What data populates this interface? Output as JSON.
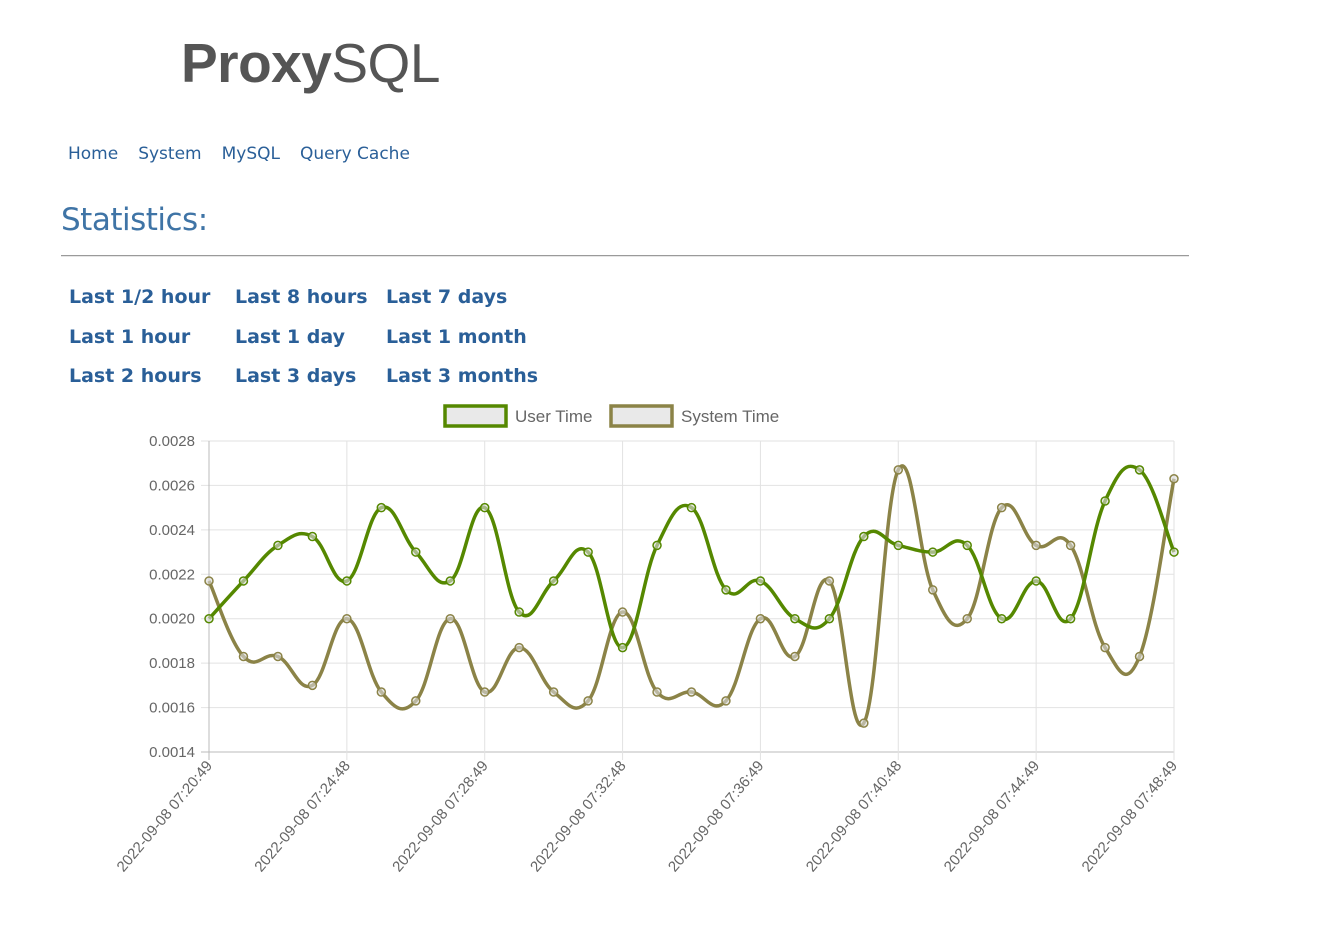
{
  "logo": {
    "bold": "Proxy",
    "light": "SQL"
  },
  "nav": {
    "items": [
      {
        "label": "Home"
      },
      {
        "label": "System"
      },
      {
        "label": "MySQL"
      },
      {
        "label": "Query Cache"
      }
    ]
  },
  "heading": "Statistics:",
  "ranges": {
    "columns": [
      [
        "Last 1/2 hour",
        "Last 1 hour",
        "Last 2 hours"
      ],
      [
        "Last 8 hours",
        "Last 1 day",
        "Last 3 days"
      ],
      [
        "Last 7 days",
        "Last 1 month",
        "Last 3 months"
      ]
    ]
  },
  "chart_data": {
    "type": "line",
    "y_ticks": [
      "0.0014",
      "0.0016",
      "0.0018",
      "0.0020",
      "0.0022",
      "0.0024",
      "0.0026",
      "0.0028"
    ],
    "ylim": [
      0.0014,
      0.0028
    ],
    "x_tick_labels": [
      "2022-09-08 07:20:49",
      "2022-09-08 07:24:48",
      "2022-09-08 07:28:49",
      "2022-09-08 07:32:48",
      "2022-09-08 07:36:49",
      "2022-09-08 07:40:48",
      "2022-09-08 07:44:49",
      "2022-09-08 07:48:49"
    ],
    "grid": true,
    "legend_position": "top",
    "series": [
      {
        "name": "User Time",
        "color": "#558800",
        "values": [
          0.002,
          0.00217,
          0.00233,
          0.00237,
          0.00217,
          0.0025,
          0.0023,
          0.00217,
          0.0025,
          0.00203,
          0.00217,
          0.0023,
          0.00187,
          0.00233,
          0.0025,
          0.00213,
          0.00217,
          0.002,
          0.002,
          0.00237,
          0.00233,
          0.0023,
          0.00233,
          0.002,
          0.00217,
          0.002,
          0.00253,
          0.00267,
          0.0023
        ]
      },
      {
        "name": "System Time",
        "color": "#8b8347",
        "values": [
          0.00217,
          0.00183,
          0.00183,
          0.0017,
          0.002,
          0.00167,
          0.00163,
          0.002,
          0.00167,
          0.00187,
          0.00167,
          0.00163,
          0.00203,
          0.00167,
          0.00167,
          0.00163,
          0.002,
          0.00183,
          0.00217,
          0.00153,
          0.00267,
          0.00213,
          0.002,
          0.0025,
          0.00233,
          0.00233,
          0.00187,
          0.00183,
          0.00263
        ]
      }
    ]
  }
}
